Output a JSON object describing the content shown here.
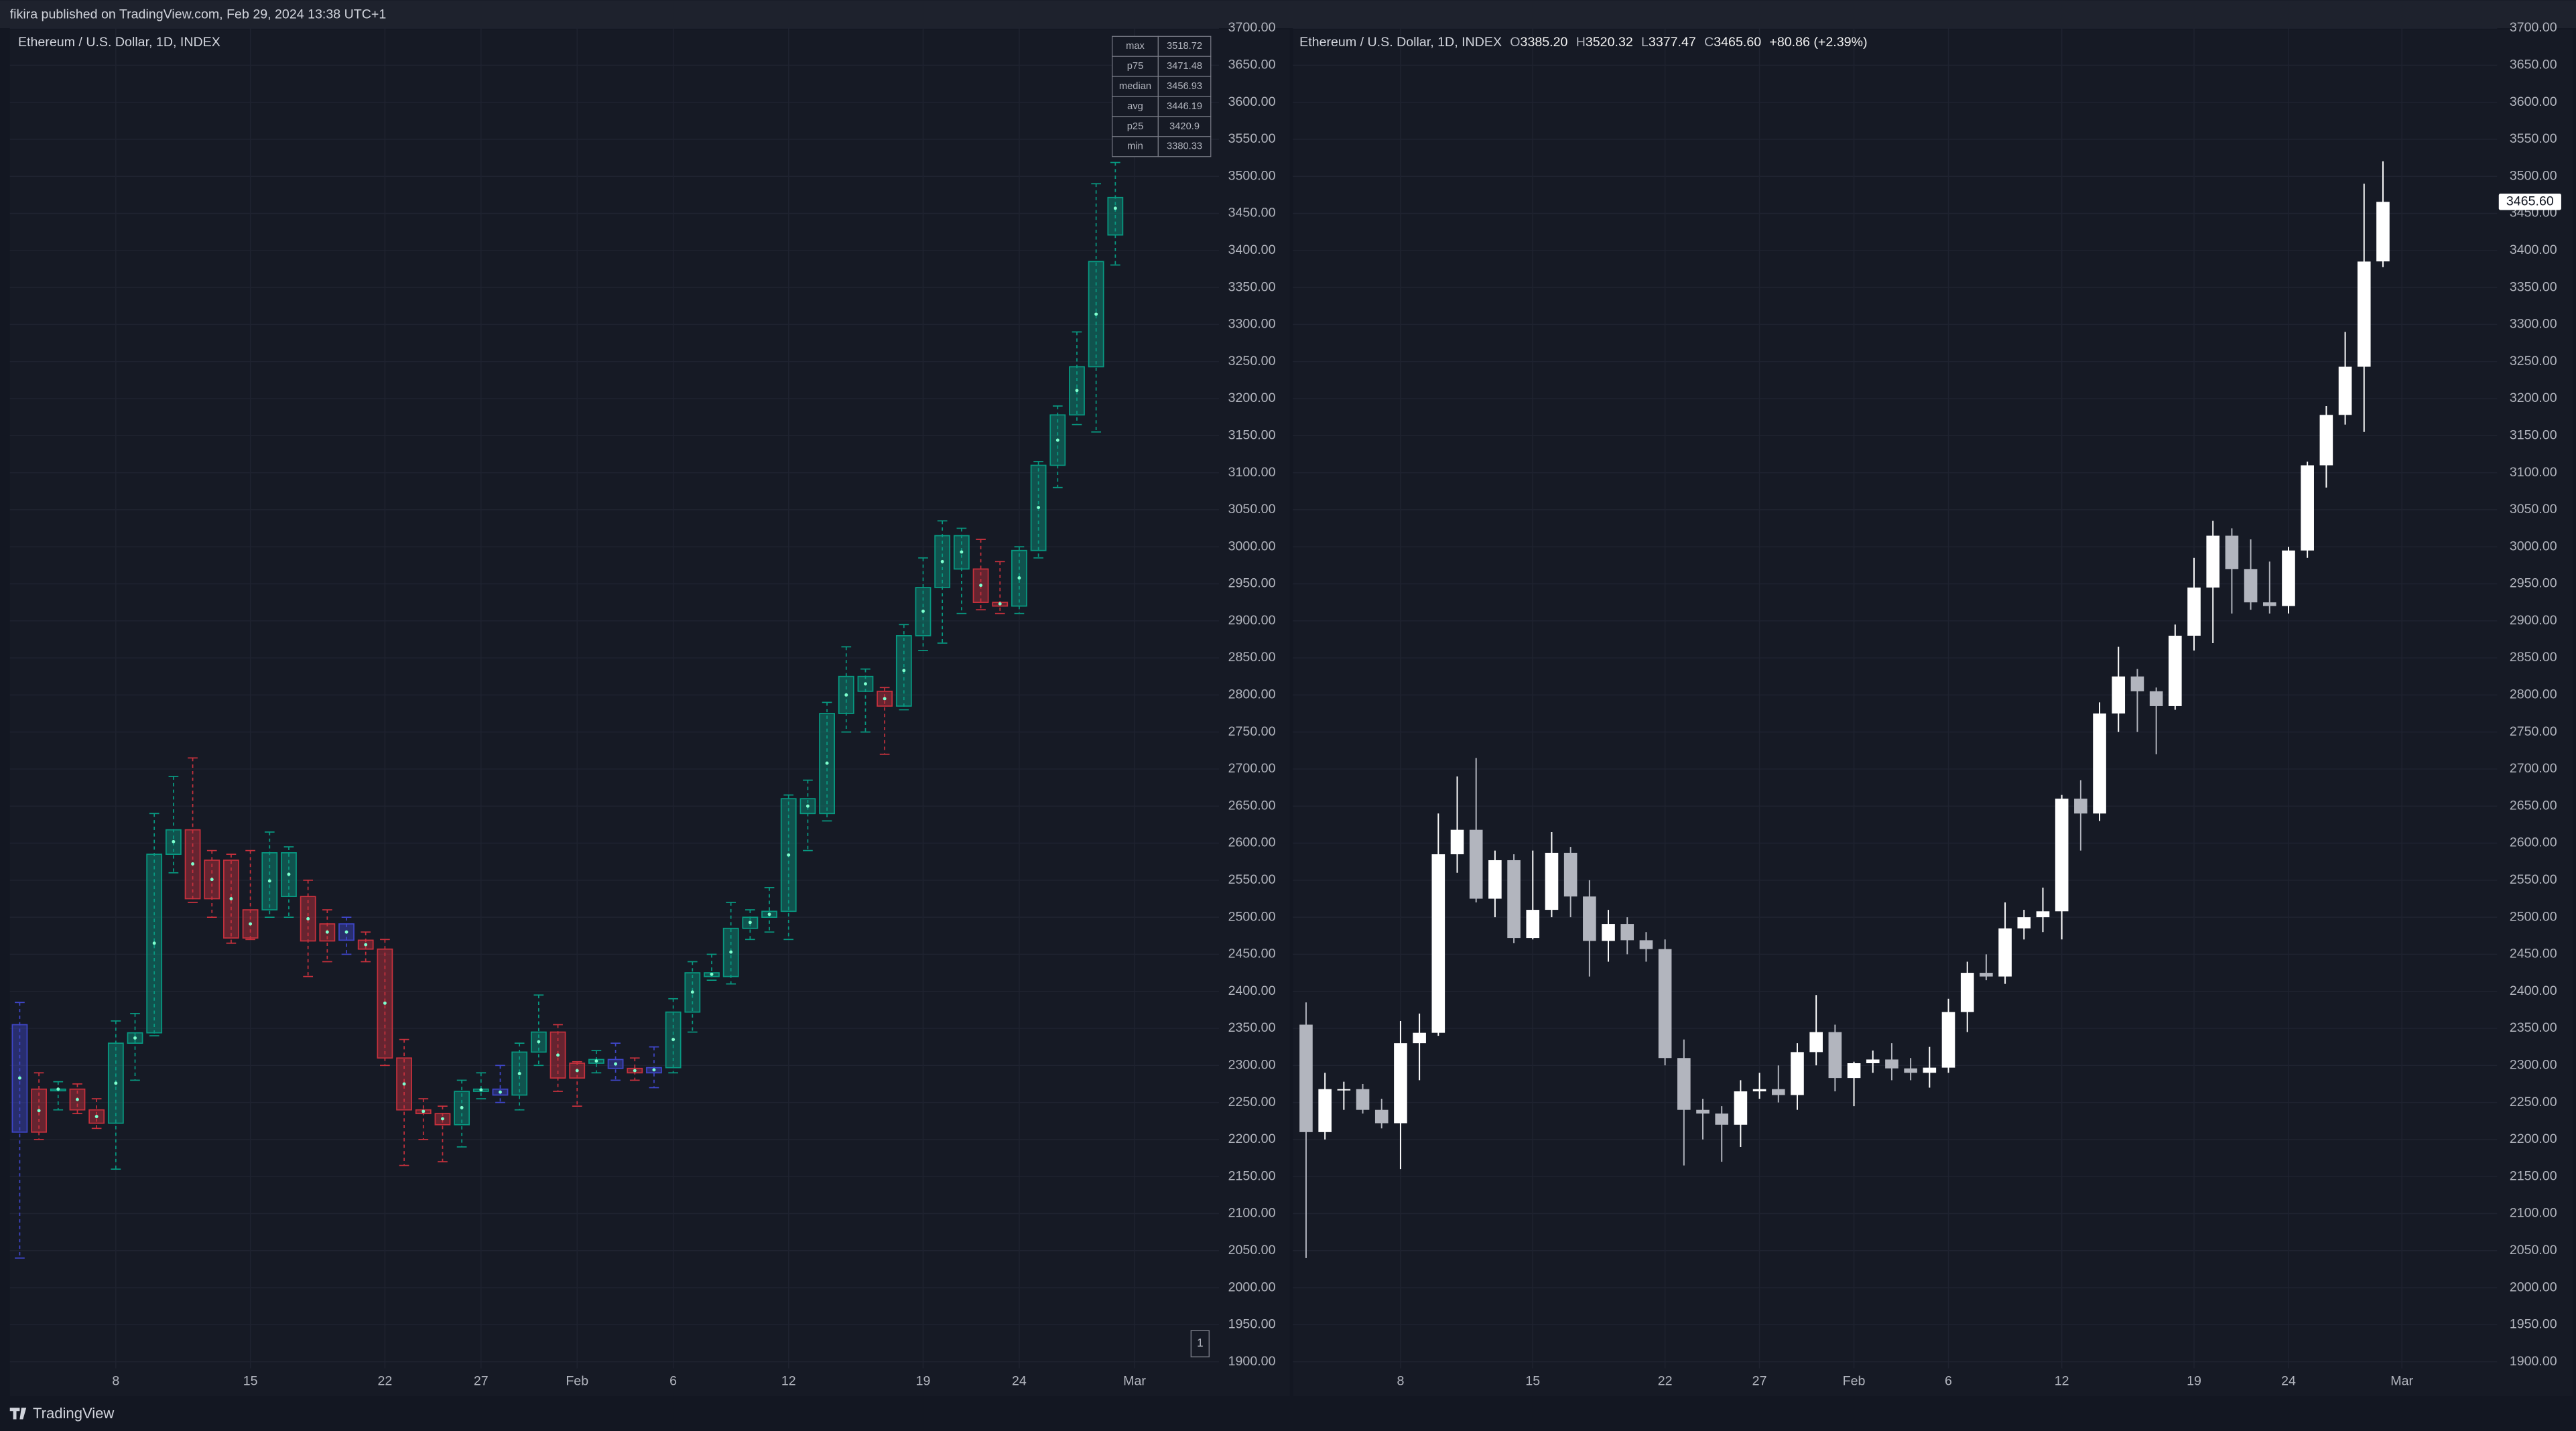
{
  "header": "fikira published on TradingView.com, Feb 29, 2024 13:38 UTC+1",
  "footer": "TradingView",
  "chart_data": [
    {
      "type": "box",
      "title": "Ethereum / U.S. Dollar, 1D, INDEX",
      "page_indicator": "1",
      "grid": true,
      "up_color": "#089981",
      "down_color": "#c7313d",
      "flat_color": "#3f46c8",
      "stats": {
        "labels": [
          "max",
          "p75",
          "median",
          "avg",
          "p25",
          "min"
        ],
        "values": [
          3518.72,
          3471.48,
          3456.93,
          3446.19,
          3420.9,
          3380.33
        ]
      },
      "categories": [
        null,
        null,
        null,
        null,
        null,
        "8",
        null,
        null,
        null,
        null,
        null,
        null,
        "15",
        null,
        null,
        null,
        null,
        null,
        null,
        "22",
        null,
        null,
        null,
        null,
        "27",
        null,
        null,
        null,
        null,
        "Feb",
        null,
        null,
        null,
        null,
        "6",
        null,
        null,
        null,
        null,
        null,
        "12",
        null,
        null,
        null,
        null,
        null,
        null,
        "19",
        null,
        null,
        null,
        null,
        "24",
        null,
        null,
        null,
        null,
        null,
        "Mar"
      ],
      "low": [
        2040,
        2200,
        2240,
        2235,
        2215,
        2160,
        2280,
        2340,
        2560,
        2520,
        2500,
        2465,
        2470,
        2500,
        2500,
        2420,
        2440,
        2450,
        2440,
        2300,
        2165,
        2200,
        2170,
        2190,
        2255,
        2250,
        2240,
        2300,
        2265,
        2245,
        2290,
        2280,
        2280,
        2270,
        2290,
        2345,
        2415,
        2410,
        2470,
        2480,
        2470,
        2590,
        2630,
        2750,
        2750,
        2720,
        2780,
        2860,
        2870,
        2910,
        2915,
        2910,
        2910,
        2985,
        3080,
        3165,
        3155,
        3380.33,
        null
      ],
      "p25": [
        2210,
        2210,
        2268,
        2240,
        2222,
        2222,
        2330,
        2344,
        2585,
        2525,
        2525,
        2472,
        2472,
        2510,
        2528,
        2468,
        2468,
        2469,
        2457,
        2310,
        2240,
        2235,
        2220,
        2220,
        2265,
        2260,
        2260,
        2318,
        2283,
        2283,
        2303,
        2296,
        2290,
        2290,
        2297,
        2372,
        2420,
        2420,
        2485,
        2500,
        2508,
        2640,
        2640,
        2775,
        2805,
        2785,
        2785,
        2880,
        2945,
        2970,
        2925,
        2920,
        2920,
        2995,
        3110,
        3178,
        3243,
        3420.9,
        null
      ],
      "median": [
        2283,
        2239,
        2268,
        2254,
        2231,
        2276,
        2337,
        2465,
        2602,
        2572,
        2551,
        2525,
        2491,
        2549,
        2558,
        2498,
        2480,
        2480,
        2463,
        2384,
        2275,
        2238,
        2228,
        2243,
        2267,
        2264,
        2289,
        2332,
        2314,
        2293,
        2306,
        2302,
        2293,
        2294,
        2335,
        2399,
        2423,
        2453,
        2493,
        2504,
        2584,
        2650,
        2708,
        2800,
        2815,
        2795,
        2833,
        2913,
        2980,
        2993,
        2948,
        2923,
        2958,
        3053,
        3144,
        3211,
        3314,
        3456.93,
        null
      ],
      "p75": [
        2355,
        2268,
        2268,
        2268,
        2240,
        2330,
        2344,
        2585,
        2618,
        2618,
        2577,
        2577,
        2510,
        2587,
        2587,
        2528,
        2491,
        2491,
        2469,
        2457,
        2310,
        2240,
        2235,
        2265,
        2268,
        2268,
        2318,
        2345,
        2345,
        2303,
        2308,
        2308,
        2296,
        2297,
        2372,
        2425,
        2425,
        2485,
        2500,
        2508,
        2660,
        2660,
        2775,
        2825,
        2825,
        2805,
        2880,
        2945,
        3015,
        3015,
        2970,
        2925,
        2995,
        3110,
        3178,
        3243,
        3385,
        3471.48,
        null
      ],
      "high": [
        2385,
        2290,
        2278,
        2275,
        2255,
        2360,
        2370,
        2640,
        2690,
        2715,
        2590,
        2585,
        2590,
        2615,
        2595,
        2550,
        2510,
        2500,
        2480,
        2470,
        2335,
        2255,
        2245,
        2280,
        2290,
        2300,
        2330,
        2395,
        2355,
        2305,
        2320,
        2330,
        2310,
        2325,
        2390,
        2440,
        2450,
        2520,
        2510,
        2540,
        2665,
        2685,
        2790,
        2865,
        2835,
        2810,
        2895,
        2985,
        3035,
        3025,
        3010,
        2980,
        3000,
        3115,
        3190,
        3290,
        3490,
        3518.72,
        null
      ],
      "ylim": [
        1900,
        3700
      ],
      "yticks": [
        {
          "value": 1900,
          "label": "1900.00"
        },
        {
          "value": 1950,
          "label": "1950.00"
        },
        {
          "value": 2000,
          "label": "2000.00"
        },
        {
          "value": 2050,
          "label": "2050.00"
        },
        {
          "value": 2100,
          "label": "2100.00"
        },
        {
          "value": 2150,
          "label": "2150.00"
        },
        {
          "value": 2200,
          "label": "2200.00"
        },
        {
          "value": 2250,
          "label": "2250.00"
        },
        {
          "value": 2300,
          "label": "2300.00"
        },
        {
          "value": 2350,
          "label": "2350.00"
        },
        {
          "value": 2400,
          "label": "2400.00"
        },
        {
          "value": 2450,
          "label": "2450.00"
        },
        {
          "value": 2500,
          "label": "2500.00"
        },
        {
          "value": 2550,
          "label": "2550.00"
        },
        {
          "value": 2600,
          "label": "2600.00"
        },
        {
          "value": 2650,
          "label": "2650.00"
        },
        {
          "value": 2700,
          "label": "2700.00"
        },
        {
          "value": 2750,
          "label": "2750.00"
        },
        {
          "value": 2800,
          "label": "2800.00"
        },
        {
          "value": 2850,
          "label": "2850.00"
        },
        {
          "value": 2900,
          "label": "2900.00"
        },
        {
          "value": 2950,
          "label": "2950.00"
        },
        {
          "value": 3000,
          "label": "3000.00"
        },
        {
          "value": 3050,
          "label": "3050.00"
        },
        {
          "value": 3100,
          "label": "3100.00"
        },
        {
          "value": 3150,
          "label": "3150.00"
        },
        {
          "value": 3200,
          "label": "3200.00"
        },
        {
          "value": 3250,
          "label": "3250.00"
        },
        {
          "value": 3300,
          "label": "3300.00"
        },
        {
          "value": 3350,
          "label": "3350.00"
        },
        {
          "value": 3400,
          "label": "3400.00"
        },
        {
          "value": 3450,
          "label": "3450.00"
        },
        {
          "value": 3500,
          "label": "3500.00"
        },
        {
          "value": 3550,
          "label": "3550.00"
        },
        {
          "value": 3600,
          "label": "3600.00"
        },
        {
          "value": 3650,
          "label": "3650.00"
        },
        {
          "value": 3700,
          "label": "3700.00"
        }
      ]
    },
    {
      "type": "candlestick",
      "title": "Ethereum / U.S. Dollar, 1D, INDEX",
      "grid": true,
      "legend": [
        {
          "key": "O",
          "value": "3385.20"
        },
        {
          "key": "H",
          "value": "3520.32"
        },
        {
          "key": "L",
          "value": "3377.47"
        },
        {
          "key": "C",
          "value": "3465.60"
        }
      ],
      "change": "+80.86 (+2.39%)",
      "last_price_label": "3465.60",
      "up_color": "#ffffff",
      "down_color": "#b2b5be",
      "categories": [
        null,
        null,
        null,
        null,
        null,
        "8",
        null,
        null,
        null,
        null,
        null,
        null,
        "15",
        null,
        null,
        null,
        null,
        null,
        null,
        "22",
        null,
        null,
        null,
        null,
        "27",
        null,
        null,
        null,
        null,
        "Feb",
        null,
        null,
        null,
        null,
        "6",
        null,
        null,
        null,
        null,
        null,
        "12",
        null,
        null,
        null,
        null,
        null,
        null,
        "19",
        null,
        null,
        null,
        null,
        "24",
        null,
        null,
        null,
        null,
        null,
        "Mar"
      ],
      "open": [
        2355,
        2210,
        2268,
        2268,
        2240,
        2222,
        2330,
        2344,
        2585,
        2618,
        2525,
        2577,
        2472,
        2510,
        2587,
        2528,
        2468,
        2491,
        2469,
        2457,
        2310,
        2240,
        2235,
        2220,
        2265,
        2268,
        2260,
        2318,
        2345,
        2283,
        2303,
        2308,
        2296,
        2290,
        2297,
        2372,
        2425,
        2420,
        2485,
        2500,
        2508,
        2660,
        2640,
        2775,
        2825,
        2805,
        2785,
        2880,
        2945,
        3015,
        2970,
        2925,
        2920,
        2995,
        3110,
        3178,
        3243,
        3385.2,
        null
      ],
      "high": [
        2385,
        2290,
        2278,
        2275,
        2255,
        2360,
        2370,
        2640,
        2690,
        2715,
        2590,
        2585,
        2590,
        2615,
        2595,
        2550,
        2510,
        2500,
        2480,
        2470,
        2335,
        2255,
        2245,
        2280,
        2290,
        2300,
        2330,
        2395,
        2355,
        2305,
        2320,
        2330,
        2310,
        2325,
        2390,
        2440,
        2450,
        2520,
        2510,
        2540,
        2665,
        2685,
        2790,
        2865,
        2835,
        2810,
        2895,
        2985,
        3035,
        3025,
        3010,
        2980,
        3000,
        3115,
        3190,
        3290,
        3490,
        3520.32,
        null
      ],
      "low": [
        2040,
        2200,
        2240,
        2235,
        2215,
        2160,
        2280,
        2340,
        2560,
        2520,
        2500,
        2465,
        2470,
        2500,
        2500,
        2420,
        2440,
        2450,
        2440,
        2300,
        2165,
        2200,
        2170,
        2190,
        2255,
        2250,
        2240,
        2300,
        2265,
        2245,
        2290,
        2280,
        2280,
        2270,
        2290,
        2345,
        2415,
        2410,
        2470,
        2480,
        2470,
        2590,
        2630,
        2750,
        2750,
        2720,
        2780,
        2860,
        2870,
        2910,
        2915,
        2910,
        2910,
        2985,
        3080,
        3165,
        3155,
        3377.47,
        null
      ],
      "close": [
        2210,
        2268,
        2268,
        2240,
        2222,
        2330,
        2344,
        2585,
        2618,
        2525,
        2577,
        2472,
        2510,
        2587,
        2528,
        2468,
        2491,
        2469,
        2457,
        2310,
        2240,
        2235,
        2220,
        2265,
        2268,
        2260,
        2318,
        2345,
        2283,
        2303,
        2308,
        2296,
        2290,
        2297,
        2372,
        2425,
        2420,
        2485,
        2500,
        2508,
        2660,
        2640,
        2775,
        2825,
        2805,
        2785,
        2880,
        2945,
        3015,
        2970,
        2925,
        2920,
        2995,
        3110,
        3178,
        3243,
        3385,
        3465.6,
        null
      ],
      "ylim": [
        1900,
        3700
      ],
      "yticks": [
        {
          "value": 1900,
          "label": "1900.00"
        },
        {
          "value": 1950,
          "label": "1950.00"
        },
        {
          "value": 2000,
          "label": "2000.00"
        },
        {
          "value": 2050,
          "label": "2050.00"
        },
        {
          "value": 2100,
          "label": "2100.00"
        },
        {
          "value": 2150,
          "label": "2150.00"
        },
        {
          "value": 2200,
          "label": "2200.00"
        },
        {
          "value": 2250,
          "label": "2250.00"
        },
        {
          "value": 2300,
          "label": "2300.00"
        },
        {
          "value": 2350,
          "label": "2350.00"
        },
        {
          "value": 2400,
          "label": "2400.00"
        },
        {
          "value": 2450,
          "label": "2450.00"
        },
        {
          "value": 2500,
          "label": "2500.00"
        },
        {
          "value": 2550,
          "label": "2550.00"
        },
        {
          "value": 2600,
          "label": "2600.00"
        },
        {
          "value": 2650,
          "label": "2650.00"
        },
        {
          "value": 2700,
          "label": "2700.00"
        },
        {
          "value": 2750,
          "label": "2750.00"
        },
        {
          "value": 2800,
          "label": "2800.00"
        },
        {
          "value": 2850,
          "label": "2850.00"
        },
        {
          "value": 2900,
          "label": "2900.00"
        },
        {
          "value": 2950,
          "label": "2950.00"
        },
        {
          "value": 3000,
          "label": "3000.00"
        },
        {
          "value": 3050,
          "label": "3050.00"
        },
        {
          "value": 3100,
          "label": "3100.00"
        },
        {
          "value": 3150,
          "label": "3150.00"
        },
        {
          "value": 3200,
          "label": "3200.00"
        },
        {
          "value": 3250,
          "label": "3250.00"
        },
        {
          "value": 3300,
          "label": "3300.00"
        },
        {
          "value": 3350,
          "label": "3350.00"
        },
        {
          "value": 3400,
          "label": "3400.00"
        },
        {
          "value": 3450,
          "label": "3450.00"
        },
        {
          "value": 3500,
          "label": "3500.00"
        },
        {
          "value": 3550,
          "label": "3550.00"
        },
        {
          "value": 3600,
          "label": "3600.00"
        },
        {
          "value": 3650,
          "label": "3650.00"
        },
        {
          "value": 3700,
          "label": "3700.00"
        }
      ]
    }
  ]
}
